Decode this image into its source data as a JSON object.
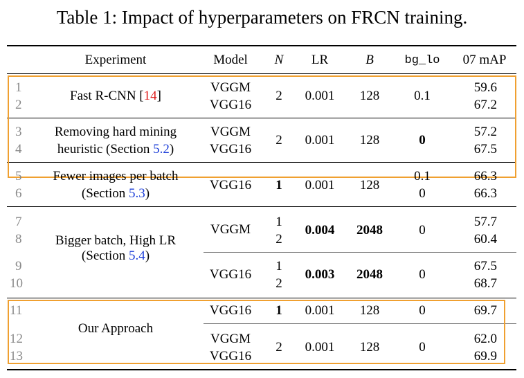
{
  "caption": "Table 1: Impact of hyperparameters on FRCN training.",
  "header": {
    "experiment": "Experiment",
    "model": "Model",
    "n": "N",
    "lr": "LR",
    "b": "B",
    "bg_lo": "bg_lo",
    "map": "07 mAP"
  },
  "groups": {
    "g1": {
      "text": "Fast R-CNN [",
      "ref": "14",
      "close": "]",
      "rows": [
        "1",
        "2"
      ],
      "models": [
        "VGGM",
        "VGG16"
      ],
      "n": "2",
      "lr": "0.001",
      "b": "128",
      "bg_lo": "0.1",
      "map": [
        "59.6",
        "67.2"
      ]
    },
    "g2": {
      "line1": "Removing hard mining",
      "line2_pre": "heuristic (Section ",
      "ref": "5.2",
      "close": ")",
      "rows": [
        "3",
        "4"
      ],
      "models": [
        "VGGM",
        "VGG16"
      ],
      "n": "2",
      "lr": "0.001",
      "b": "128",
      "bg_lo": "0",
      "map": [
        "57.2",
        "67.5"
      ]
    },
    "g3": {
      "line1": "Fewer images per batch",
      "line2_pre": "(Section ",
      "ref": "5.3",
      "close": ")",
      "rows": [
        "5",
        "6"
      ],
      "model": "VGG16",
      "n": "1",
      "lr": "0.001",
      "b": "128",
      "bg_lo": [
        "0.1",
        "0"
      ],
      "map": [
        "66.3",
        "66.3"
      ]
    },
    "g4": {
      "line1": "Bigger batch, High LR",
      "line2_pre": "(Section ",
      "ref": "5.4",
      "close": ")",
      "rows": [
        "7",
        "8",
        "9",
        "10"
      ],
      "sub_a": {
        "model": "VGGM",
        "n": [
          "1",
          "2"
        ],
        "lr": "0.004",
        "b": "2048",
        "bg_lo": "0",
        "map": [
          "57.7",
          "60.4"
        ]
      },
      "sub_b": {
        "model": "VGG16",
        "n": [
          "1",
          "2"
        ],
        "lr": "0.003",
        "b": "2048",
        "bg_lo": "0",
        "map": [
          "67.5",
          "68.7"
        ]
      }
    },
    "g5": {
      "text": "Our Approach",
      "rows": [
        "11",
        "12",
        "13"
      ],
      "sub_a": {
        "model": "VGG16",
        "n": "1",
        "lr": "0.001",
        "b": "128",
        "bg_lo": "0",
        "map": "69.7"
      },
      "sub_b": {
        "models": [
          "VGGM",
          "VGG16"
        ],
        "n": "2",
        "lr": "0.001",
        "b": "128",
        "bg_lo": "0",
        "map": [
          "62.0",
          "69.9"
        ]
      }
    }
  },
  "colors": {
    "highlight_box": "#f0a030",
    "citation_red": "#e02020",
    "citation_blue": "#1a3cd8",
    "row_number": "#8a8a8a"
  }
}
